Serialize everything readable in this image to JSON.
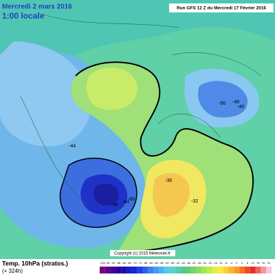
{
  "header": {
    "date": "Mercredi 2 mars 2016",
    "time": "1:00 locale",
    "run": "Run GFS 12 Z du Mercredi 17 Février 2016"
  },
  "map": {
    "contour_labels": [
      "-68",
      "-64",
      "-60",
      "-56",
      "-48",
      "-36",
      "-32",
      "-44",
      "-40"
    ],
    "copyright": "Copyright (c) 2015 Meteociel.fr"
  },
  "footer": {
    "title": "Temp. 10hPa (stratos.)",
    "lead": "(+ 324h)"
  },
  "legend": {
    "labels": [
      "-100",
      "-96",
      "-92",
      "-88",
      "-84",
      "-80",
      "-76",
      "-72",
      "-68",
      "-64",
      "-60",
      "-56",
      "-52",
      "-48",
      "-44",
      "-40",
      "-36",
      "-32",
      "-28",
      "-24",
      "-20",
      "-16",
      "-12",
      "-8",
      "-4",
      "0",
      "4",
      "8",
      "12",
      "16",
      "20",
      "24"
    ]
  }
}
